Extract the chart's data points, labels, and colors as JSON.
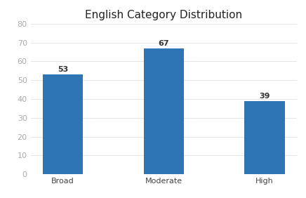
{
  "title": "English Category Distribution",
  "categories": [
    "Broad",
    "Moderate",
    "High"
  ],
  "values": [
    53,
    67,
    39
  ],
  "bar_color": "#2E75B6",
  "ylim": [
    0,
    80
  ],
  "yticks": [
    0,
    10,
    20,
    30,
    40,
    50,
    60,
    70,
    80
  ],
  "background_color": "#FFFFFF",
  "grid_color": "#E0E0E0",
  "title_fontsize": 11,
  "label_fontsize": 8,
  "bar_label_fontsize": 8,
  "bar_width": 0.4
}
